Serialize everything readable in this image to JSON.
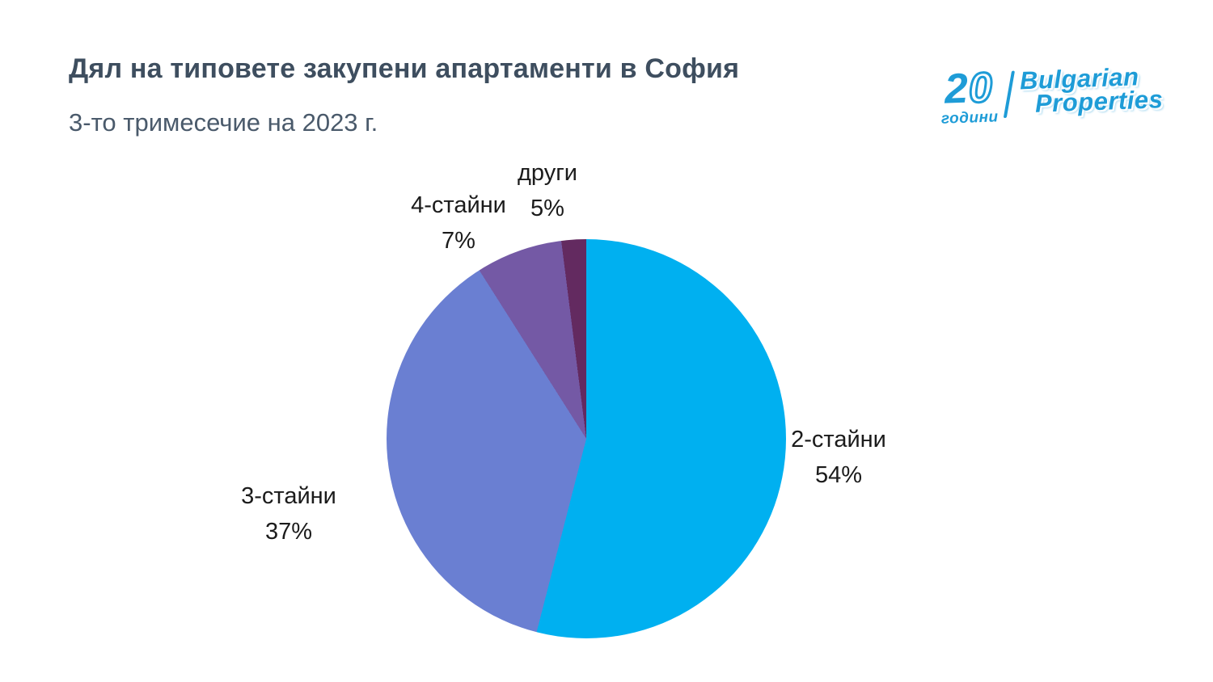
{
  "header": {
    "title": "Дял на типовете закупени апартаменти в София",
    "subtitle": "3-то тримесечие на 2023 г."
  },
  "logo": {
    "years_digits": [
      "2",
      "0"
    ],
    "years_text": "години",
    "brand_line1": "Bulgarian",
    "brand_line2": "Properties",
    "color": "#1e9cd7"
  },
  "chart_data": {
    "type": "pie",
    "title": "Дял на типовете закупени апартаменти в София",
    "subtitle": "3-то тримесечие на 2023 г.",
    "categories": [
      "2-стайни",
      "3-стайни",
      "4-стайни",
      "други"
    ],
    "values": [
      54,
      37,
      7,
      5
    ],
    "unit": "%",
    "start_angle_deg": 0,
    "direction": "clockwise",
    "legend": "none",
    "label_position": "outside",
    "slices": [
      {
        "label": "2-стайни",
        "value": 54,
        "pct": "54%",
        "color": "#00b0f0"
      },
      {
        "label": "3-стайни",
        "value": 37,
        "pct": "37%",
        "color": "#6a7fd2"
      },
      {
        "label": "4-стайни",
        "value": 7,
        "pct": "7%",
        "color": "#7459a5"
      },
      {
        "label": "други",
        "value": 5,
        "pct": "5%",
        "color": "#632a60"
      }
    ]
  }
}
